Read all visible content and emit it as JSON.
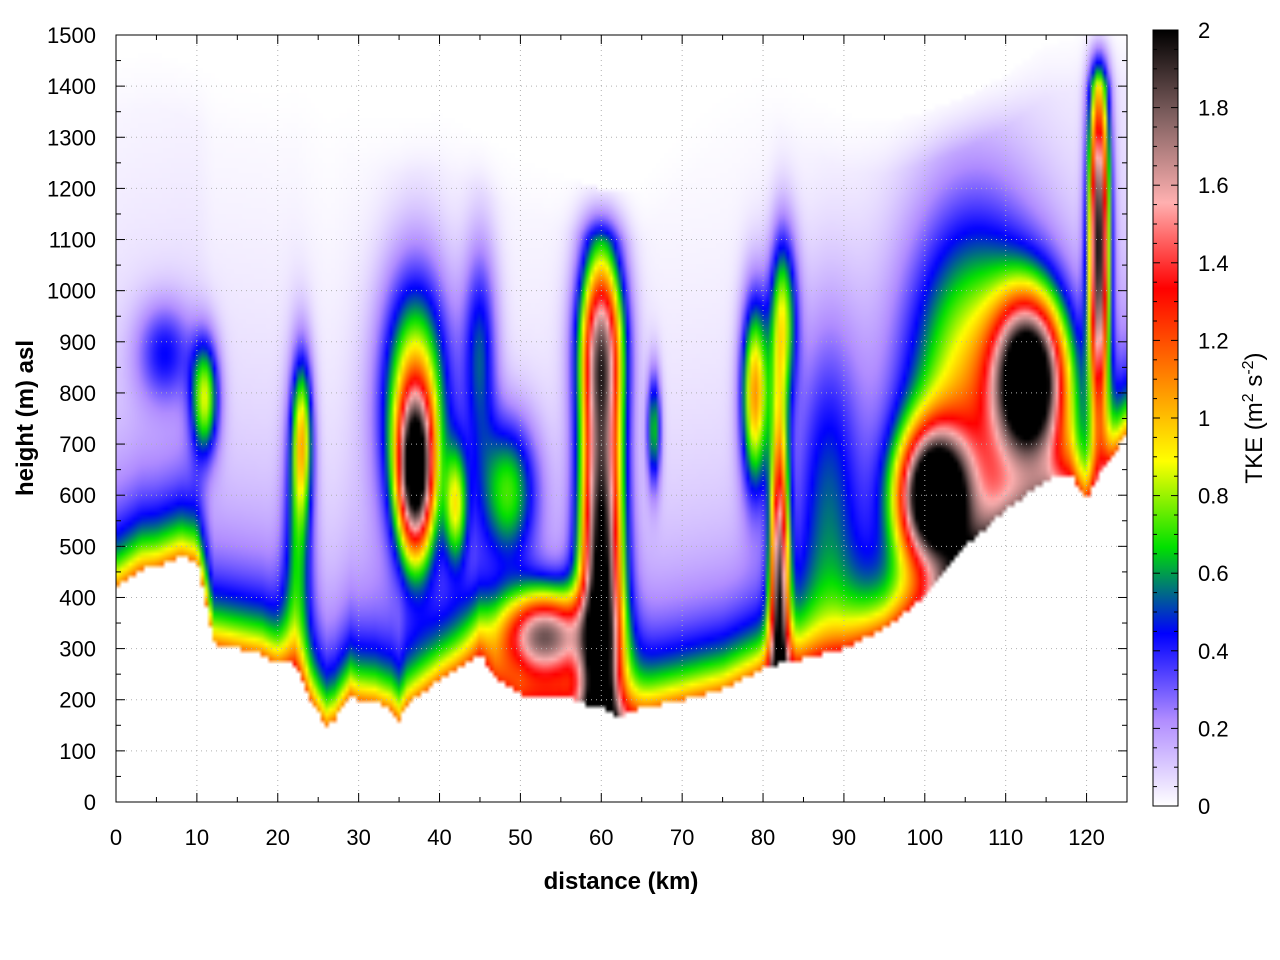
{
  "chart_data": {
    "type": "heatmap",
    "title": "",
    "xlabel": "distance (km)",
    "ylabel": "height (m) asl",
    "xlim": [
      0,
      125
    ],
    "ylim": [
      0,
      1500
    ],
    "x_ticks": [
      "0",
      "10",
      "20",
      "30",
      "40",
      "50",
      "60",
      "70",
      "80",
      "90",
      "100",
      "110",
      "120"
    ],
    "y_ticks": [
      "0",
      "100",
      "200",
      "300",
      "400",
      "500",
      "600",
      "700",
      "800",
      "900",
      "1000",
      "1100",
      "1200",
      "1300",
      "1400",
      "1500"
    ],
    "grid": true,
    "colorbar": {
      "label": "TKE (m",
      "label_sup1": "2",
      "label_mid": " s",
      "label_sup2": "-2",
      "label_end": ")",
      "range": [
        0,
        2
      ],
      "ticks": [
        "0",
        "0.2",
        "0.4",
        "0.6",
        "0.8",
        "1",
        "1.2",
        "1.4",
        "1.6",
        "1.8",
        "2"
      ],
      "colors": [
        "#ffffff",
        "#b08cff",
        "#0000ff",
        "#00e000",
        "#ffff00",
        "#ff8000",
        "#ff0000",
        "#ffb0b0",
        "#806060",
        "#000000"
      ]
    },
    "terrain": {
      "x": [
        0,
        3,
        5,
        8,
        10,
        11,
        12,
        15,
        18,
        20,
        22,
        24,
        26,
        27,
        29,
        30,
        32,
        34,
        35,
        36,
        40,
        45,
        47,
        50,
        55,
        58,
        60,
        62,
        64,
        66,
        70,
        75,
        80,
        82,
        85,
        90,
        95,
        100,
        105,
        110,
        115,
        118,
        120,
        122,
        125
      ],
      "y": [
        420,
        455,
        460,
        480,
        470,
        400,
        310,
        300,
        290,
        270,
        270,
        200,
        150,
        160,
        210,
        200,
        195,
        180,
        160,
        190,
        240,
        290,
        240,
        210,
        210,
        190,
        185,
        165,
        180,
        185,
        200,
        220,
        260,
        270,
        280,
        300,
        340,
        400,
        500,
        570,
        630,
        640,
        590,
        650,
        720
      ]
    },
    "cap": {
      "x": [
        0,
        5,
        10,
        15,
        20,
        25,
        30,
        35,
        40,
        45,
        50,
        55,
        60,
        65,
        70,
        75,
        80,
        85,
        90,
        95,
        100,
        105,
        110,
        115,
        120,
        125
      ],
      "y": [
        1450,
        1460,
        1430,
        1390,
        1380,
        1420,
        1350,
        1330,
        1340,
        1300,
        1250,
        1220,
        1200,
        1200,
        1300,
        1400,
        1450,
        1380,
        1340,
        1330,
        1350,
        1380,
        1420,
        1480,
        1500,
        1500
      ]
    },
    "features": [
      {
        "x": 11,
        "y": 790,
        "sx": 1.2,
        "sy": 80,
        "v": 0.75
      },
      {
        "x": 6,
        "y": 880,
        "sx": 2.5,
        "sy": 70,
        "v": 0.35
      },
      {
        "x": 23,
        "y": 720,
        "sx": 0.9,
        "sy": 110,
        "v": 0.7
      },
      {
        "x": 22.5,
        "y": 520,
        "sx": 1.2,
        "sy": 200,
        "v": 0.45
      },
      {
        "x": 37,
        "y": 640,
        "sx": 1.5,
        "sy": 110,
        "v": 1.7
      },
      {
        "x": 37,
        "y": 780,
        "sx": 3.0,
        "sy": 180,
        "v": 0.9
      },
      {
        "x": 42,
        "y": 580,
        "sx": 1.0,
        "sy": 80,
        "v": 0.65
      },
      {
        "x": 48.5,
        "y": 610,
        "sx": 2.5,
        "sy": 100,
        "v": 0.62
      },
      {
        "x": 60,
        "y": 460,
        "sx": 1.8,
        "sy": 350,
        "v": 2.0
      },
      {
        "x": 60,
        "y": 900,
        "sx": 2.0,
        "sy": 120,
        "v": 0.9
      },
      {
        "x": 66.5,
        "y": 730,
        "sx": 0.6,
        "sy": 80,
        "v": 0.6
      },
      {
        "x": 79,
        "y": 800,
        "sx": 1.2,
        "sy": 130,
        "v": 1.0
      },
      {
        "x": 82,
        "y": 420,
        "sx": 0.8,
        "sy": 250,
        "v": 1.6
      },
      {
        "x": 82.5,
        "y": 950,
        "sx": 1.2,
        "sy": 120,
        "v": 0.7
      },
      {
        "x": 101,
        "y": 600,
        "sx": 3.0,
        "sy": 90,
        "v": 2.0
      },
      {
        "x": 113,
        "y": 830,
        "sx": 3.0,
        "sy": 110,
        "v": 2.0
      },
      {
        "x": 106,
        "y": 780,
        "sx": 6.0,
        "sy": 260,
        "v": 0.9
      },
      {
        "x": 121.5,
        "y": 1100,
        "sx": 0.9,
        "sy": 250,
        "v": 1.9
      },
      {
        "x": 53,
        "y": 330,
        "sx": 4.0,
        "sy": 60,
        "v": 1.4
      },
      {
        "x": 45,
        "y": 880,
        "sx": 1.5,
        "sy": 150,
        "v": 0.45
      },
      {
        "x": 88,
        "y": 600,
        "sx": 3.0,
        "sy": 250,
        "v": 0.4
      }
    ]
  }
}
